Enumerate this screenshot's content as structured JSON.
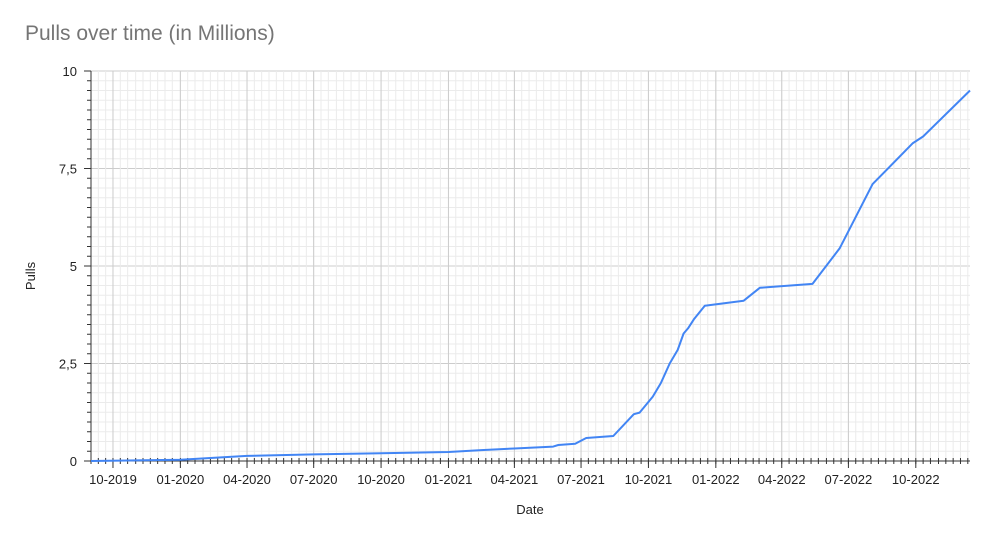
{
  "chart_data": {
    "type": "line",
    "title": "Pulls over time (in Millions)",
    "xlabel": "Date",
    "ylabel": "Pulls",
    "xlim": [
      "2019-09-01",
      "2022-12-14"
    ],
    "ylim": [
      0,
      10
    ],
    "y_ticks": [
      0,
      2.5,
      5,
      7.5,
      10
    ],
    "y_tick_labels": [
      "0",
      "2,5",
      "5",
      "7,5",
      "10"
    ],
    "x_tick_dates": [
      "2019-10-01",
      "2020-01-01",
      "2020-04-01",
      "2020-07-01",
      "2020-10-01",
      "2021-01-01",
      "2021-04-01",
      "2021-07-01",
      "2021-10-01",
      "2022-01-01",
      "2022-04-01",
      "2022-07-01",
      "2022-10-01"
    ],
    "x_tick_labels": [
      "10-2019",
      "01-2020",
      "04-2020",
      "07-2020",
      "10-2020",
      "01-2021",
      "04-2021",
      "07-2021",
      "10-2021",
      "01-2022",
      "04-2022",
      "07-2022",
      "10-2022"
    ],
    "grid": true,
    "line_color": "#4285f4",
    "series": [
      {
        "x": [
          "2019-09-01",
          "2020-01-01",
          "2020-04-01",
          "2020-07-01",
          "2020-10-01",
          "2021-01-01",
          "2021-02-15",
          "2021-04-01",
          "2021-05-24",
          "2021-05-31",
          "2021-06-23",
          "2021-07-08",
          "2021-08-14",
          "2021-09-11",
          "2021-09-19",
          "2021-10-07",
          "2021-10-18",
          "2021-10-30",
          "2021-11-10",
          "2021-11-18",
          "2021-11-24",
          "2021-12-02",
          "2021-12-17",
          "2022-02-08",
          "2022-03-02",
          "2022-05-13",
          "2022-06-19",
          "2022-08-03",
          "2022-09-27",
          "2022-10-11",
          "2022-12-14"
        ],
        "y": [
          0,
          0.03,
          0.13,
          0.17,
          0.2,
          0.23,
          0.28,
          0.32,
          0.37,
          0.41,
          0.44,
          0.59,
          0.64,
          1.2,
          1.24,
          1.65,
          2.0,
          2.5,
          2.85,
          3.27,
          3.4,
          3.63,
          3.98,
          4.11,
          4.44,
          4.54,
          5.45,
          7.1,
          8.15,
          8.32,
          9.5
        ]
      }
    ]
  }
}
